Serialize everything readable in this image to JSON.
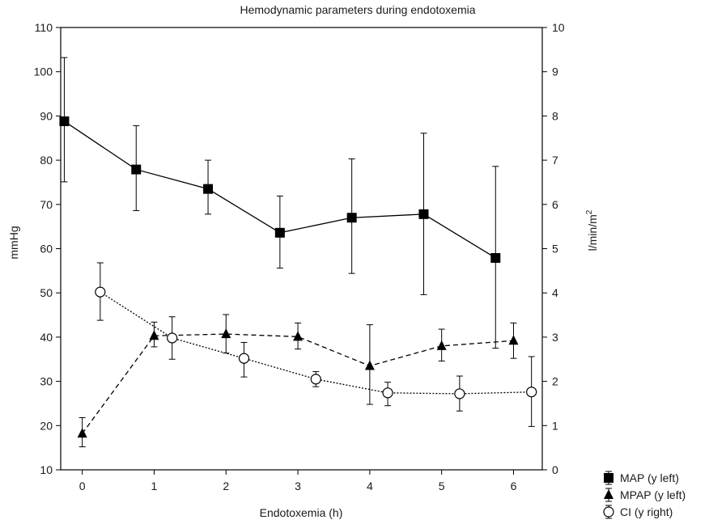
{
  "chart_data": {
    "type": "line",
    "title": "Hemodynamic parameters during endotoxemia",
    "xlabel": "Endotoxemia (h)",
    "ylabel_left": "mmHg",
    "ylabel_right_base": "l/min/m",
    "ylabel_right_sup": "2",
    "xlim": [
      -0.3,
      6.4
    ],
    "ylim_left": [
      10,
      110
    ],
    "ylim_right": [
      0,
      10
    ],
    "x_ticks": [
      "0",
      "1",
      "2",
      "3",
      "4",
      "5",
      "6"
    ],
    "y_left_ticks": [
      "10",
      "20",
      "30",
      "40",
      "50",
      "60",
      "70",
      "80",
      "90",
      "100",
      "110"
    ],
    "y_right_ticks": [
      "0",
      "1",
      "2",
      "3",
      "4",
      "5",
      "6",
      "7",
      "8",
      "9",
      "10"
    ],
    "grid": false,
    "legend_position": "bottom-right",
    "series": [
      {
        "name": "MAP (y left)",
        "axis": "left",
        "marker": "filled-square",
        "line": "solid",
        "x": [
          -0.25,
          0.75,
          1.75,
          2.75,
          3.75,
          4.75,
          5.75
        ],
        "y": [
          88.8,
          77.9,
          73.5,
          63.6,
          67.0,
          67.8,
          57.9
        ],
        "err_low": [
          75.1,
          68.6,
          67.8,
          55.6,
          54.4,
          49.6,
          37.5
        ],
        "err_high": [
          103.2,
          87.8,
          80.0,
          71.9,
          80.3,
          86.1,
          78.6
        ]
      },
      {
        "name": "MPAP (y left)",
        "axis": "left",
        "marker": "filled-triangle",
        "line": "dashed",
        "x": [
          0.0,
          1.0,
          2.0,
          3.0,
          4.0,
          5.0,
          6.0
        ],
        "y": [
          18.2,
          40.3,
          40.7,
          40.1,
          33.5,
          38.0,
          39.2
        ],
        "err_low": [
          15.2,
          37.8,
          36.4,
          37.3,
          24.8,
          34.6,
          35.2
        ],
        "err_high": [
          21.8,
          43.4,
          45.1,
          43.2,
          42.8,
          41.8,
          43.2
        ]
      },
      {
        "name": "CI (y right)",
        "axis": "right",
        "marker": "open-circle",
        "line": "dotted",
        "x": [
          0.25,
          1.25,
          2.25,
          3.25,
          4.25,
          5.25,
          6.25
        ],
        "y": [
          4.02,
          2.98,
          2.52,
          2.05,
          1.74,
          1.72,
          1.76
        ],
        "err_low": [
          3.38,
          2.5,
          2.1,
          1.88,
          1.45,
          1.33,
          0.98
        ],
        "err_high": [
          4.68,
          3.46,
          2.88,
          2.22,
          1.98,
          2.12,
          2.56
        ]
      }
    ]
  }
}
